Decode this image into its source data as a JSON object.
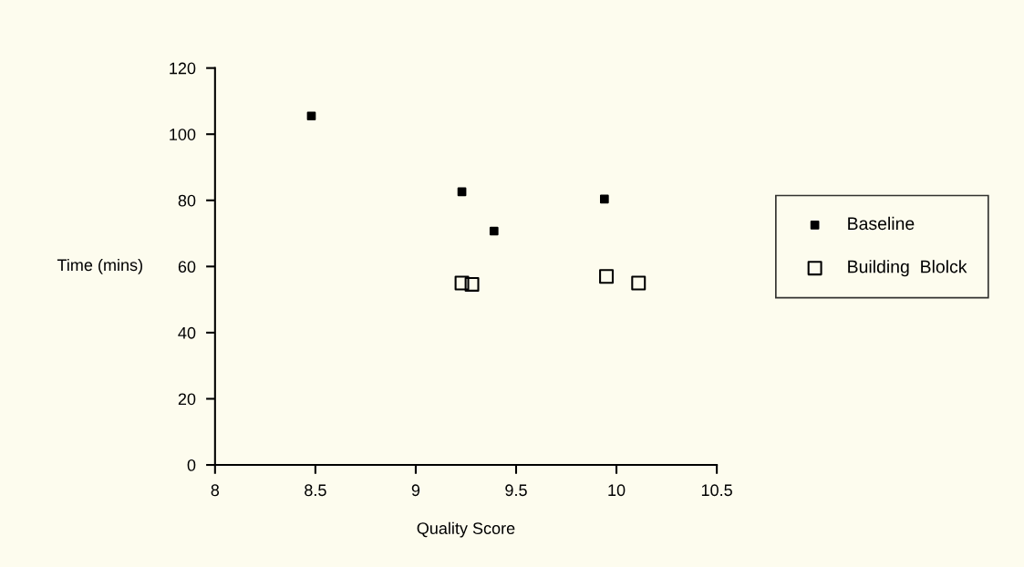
{
  "chart_data": {
    "type": "scatter",
    "xlabel": "Quality Score",
    "ylabel": "Time (mins)",
    "xlim": [
      8,
      10.5
    ],
    "xticks": [
      8,
      8.5,
      9,
      9.5,
      10,
      10.5
    ],
    "ylim": [
      0,
      120
    ],
    "yticks": [
      0,
      20,
      40,
      60,
      80,
      100,
      120
    ],
    "grid": false,
    "legend": "right",
    "series": [
      {
        "name": "Baseline",
        "color": "#000000",
        "marker": "square",
        "x": [
          8.48,
          9.23,
          9.39,
          9.94
        ],
        "values": [
          105.5,
          82.6,
          70.7,
          80.4
        ]
      },
      {
        "name": "Building  Blolck",
        "color": "#000000",
        "marker": "square",
        "x": [
          9.23,
          9.28,
          9.95,
          10.11
        ],
        "values": [
          55,
          54.6,
          57,
          55
        ]
      }
    ]
  }
}
